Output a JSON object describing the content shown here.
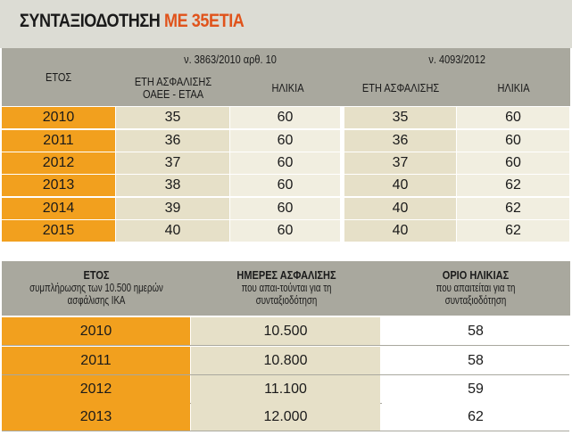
{
  "title": {
    "black": "ΣΥΝΤΑΞΙΟΔΟΤΗΣΗ",
    "orange": "ΜΕ 35ΕΤΙΑ"
  },
  "table1": {
    "year_header": "ΕΤΟΣ",
    "law1": "ν. 3863/2010 αρθ. 10",
    "law2": "ν. 4093/2012",
    "col1": "ΕΤΗ ΑΣΦΑΛΙΣΗΣ ΟΑΕΕ - ΕΤΑΑ",
    "col2": "ΗΛΙΚΙΑ",
    "col3": "ΕΤΗ ΑΣΦΑΛΙΣΗΣ",
    "col4": "ΗΛΙΚΙΑ",
    "rows": [
      {
        "year": "2010",
        "a": "35",
        "b": "60",
        "c": "35",
        "d": "60"
      },
      {
        "year": "2011",
        "a": "36",
        "b": "60",
        "c": "36",
        "d": "60"
      },
      {
        "year": "2012",
        "a": "37",
        "b": "60",
        "c": "37",
        "d": "60"
      },
      {
        "year": "2013",
        "a": "38",
        "b": "60",
        "c": "40",
        "d": "62"
      },
      {
        "year": "2014",
        "a": "39",
        "b": "60",
        "c": "40",
        "d": "62"
      },
      {
        "year": "2015",
        "a": "40",
        "b": "60",
        "c": "40",
        "d": "62"
      }
    ]
  },
  "table2": {
    "h1_bold": "ΕΤΟΣ",
    "h1_rest": "συμπλήρωσης των 10.500 ημερών ασφάλισης ΙΚΑ",
    "h2_bold": "ΗΜΕΡΕΣ ΑΣΦΑΛΙΣΗΣ",
    "h2_rest": "που απαι-τούνται για τη συνταξιοδότηση",
    "h3_bold": "ΟΡΙΟ ΗΛΙΚΙΑΣ",
    "h3_rest": "που απαιτείται για τη συνταξιοδότηση",
    "rows": [
      {
        "year": "2010",
        "days": "10.500",
        "age": "58"
      },
      {
        "year": "2011",
        "days": "10.800",
        "age": "58"
      },
      {
        "year": "2012",
        "days": "11.100",
        "age": "59"
      },
      {
        "year": "2013",
        "days": "12.000",
        "age": "62"
      }
    ]
  }
}
